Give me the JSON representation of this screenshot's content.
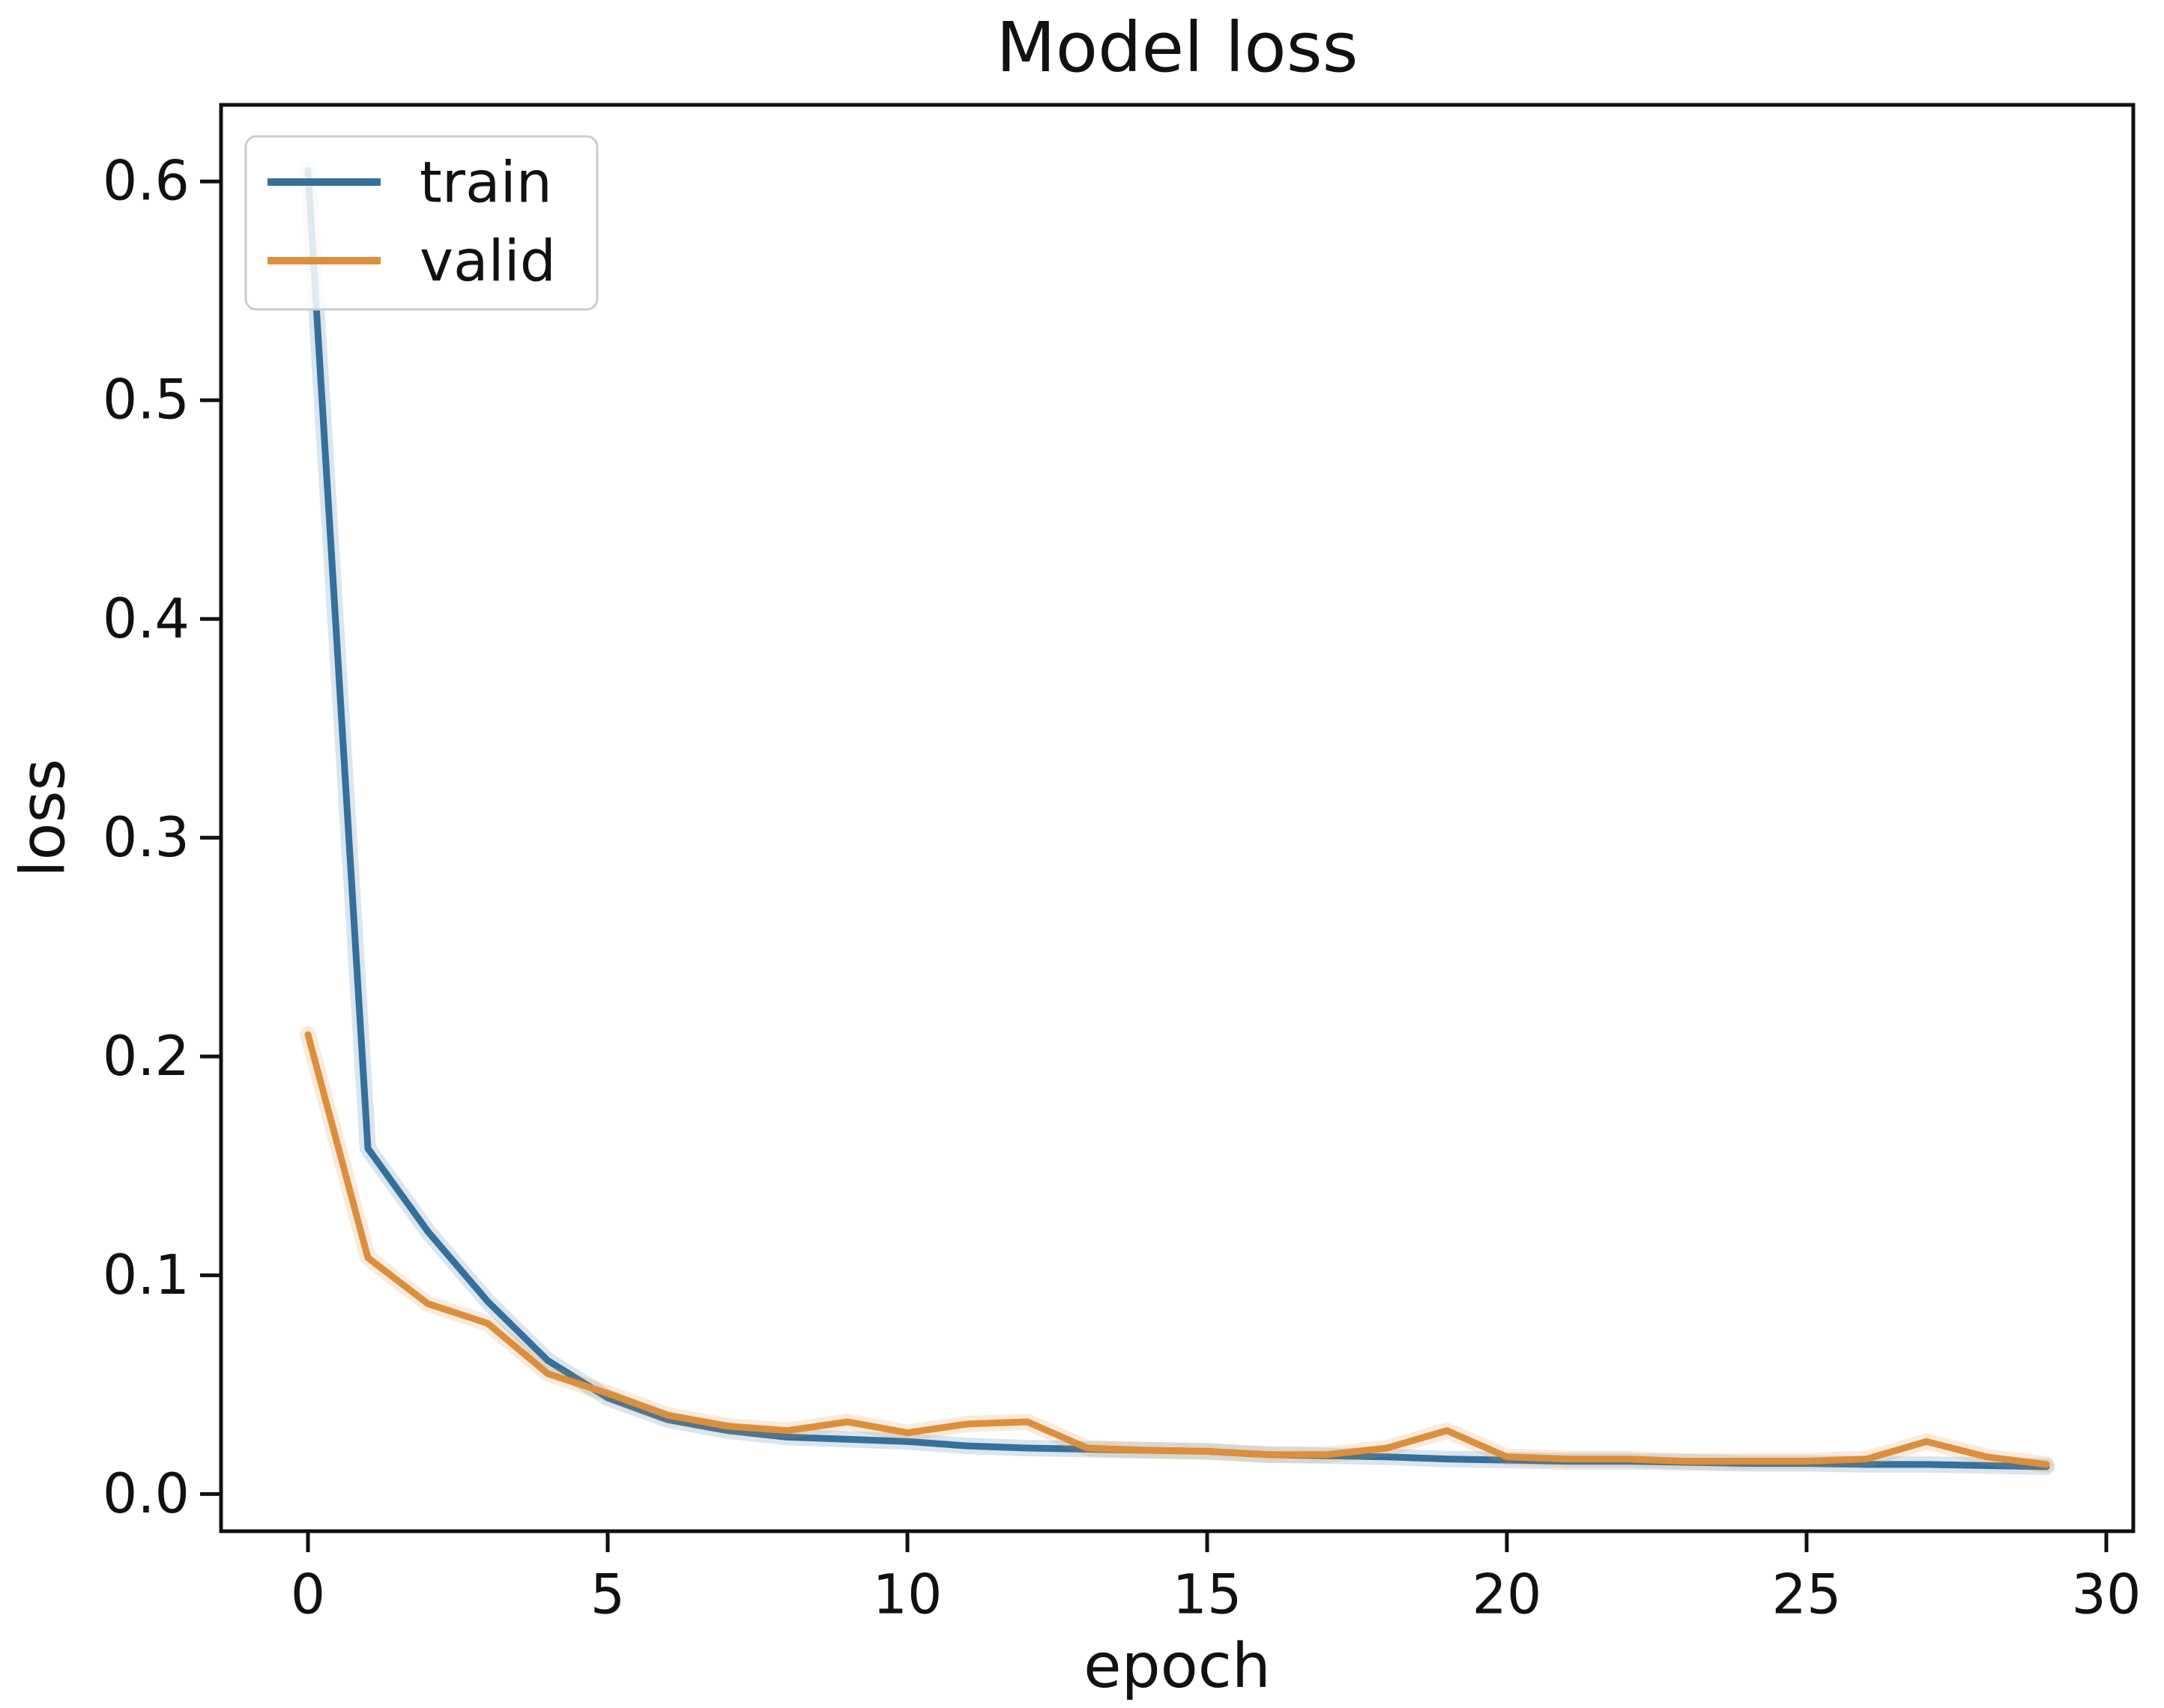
{
  "figure": {
    "title": "Model loss"
  },
  "chart_data": {
    "type": "line",
    "title": "Model loss",
    "xlabel": "epoch",
    "ylabel": "loss",
    "grid": false,
    "legend_position": "upper left",
    "xlim": [
      -1.45,
      30.45
    ],
    "ylim": [
      -0.017,
      0.635
    ],
    "x_ticks": [
      {
        "v": 0,
        "label": "0"
      },
      {
        "v": 5,
        "label": "5"
      },
      {
        "v": 10,
        "label": "10"
      },
      {
        "v": 15,
        "label": "15"
      },
      {
        "v": 20,
        "label": "20"
      },
      {
        "v": 25,
        "label": "25"
      },
      {
        "v": 30,
        "label": "30"
      }
    ],
    "y_ticks": [
      {
        "v": 0.0,
        "label": "0.0"
      },
      {
        "v": 0.1,
        "label": "0.1"
      },
      {
        "v": 0.2,
        "label": "0.2"
      },
      {
        "v": 0.3,
        "label": "0.3"
      },
      {
        "v": 0.4,
        "label": "0.4"
      },
      {
        "v": 0.5,
        "label": "0.5"
      },
      {
        "v": 0.6,
        "label": "0.6"
      }
    ],
    "x": [
      0,
      1,
      2,
      3,
      4,
      5,
      6,
      7,
      8,
      9,
      10,
      11,
      12,
      13,
      14,
      15,
      16,
      17,
      18,
      19,
      20,
      21,
      22,
      23,
      24,
      25,
      26,
      27,
      28,
      29
    ],
    "series": [
      {
        "name": "train",
        "color": "#356f9c",
        "values": [
          0.605,
          0.158,
          0.12,
          0.088,
          0.061,
          0.044,
          0.034,
          0.029,
          0.026,
          0.025,
          0.024,
          0.022,
          0.021,
          0.0205,
          0.02,
          0.0195,
          0.018,
          0.0175,
          0.017,
          0.016,
          0.0155,
          0.015,
          0.015,
          0.0145,
          0.014,
          0.014,
          0.0135,
          0.0135,
          0.013,
          0.0125
        ]
      },
      {
        "name": "valid",
        "color": "#db8f3d",
        "values": [
          0.21,
          0.108,
          0.087,
          0.078,
          0.055,
          0.046,
          0.036,
          0.031,
          0.029,
          0.033,
          0.028,
          0.032,
          0.033,
          0.021,
          0.02,
          0.0195,
          0.018,
          0.018,
          0.021,
          0.029,
          0.017,
          0.016,
          0.016,
          0.015,
          0.015,
          0.015,
          0.016,
          0.024,
          0.017,
          0.0135
        ]
      }
    ]
  }
}
